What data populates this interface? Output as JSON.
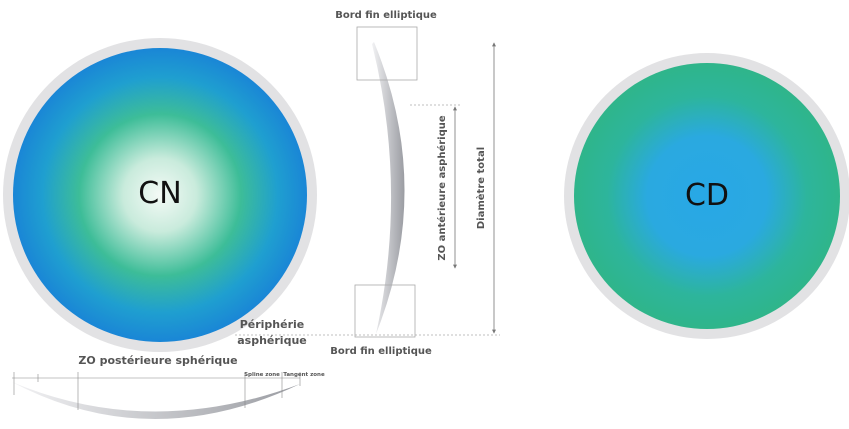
{
  "top_label": "Bord fin elliptique",
  "bottom_label": "Bord fin elliptique",
  "left_lens": "CN",
  "right_lens": "CD",
  "anterior_zone": "ZO antérieure asphérique",
  "total_diameter": "Diamètre total",
  "periphery": [
    "Périphérie",
    "asphérique"
  ],
  "posterior_zone": "ZO postérieure sphérique",
  "spline_zone": "Spline zone",
  "tangent_zone": "Tangent zone"
}
